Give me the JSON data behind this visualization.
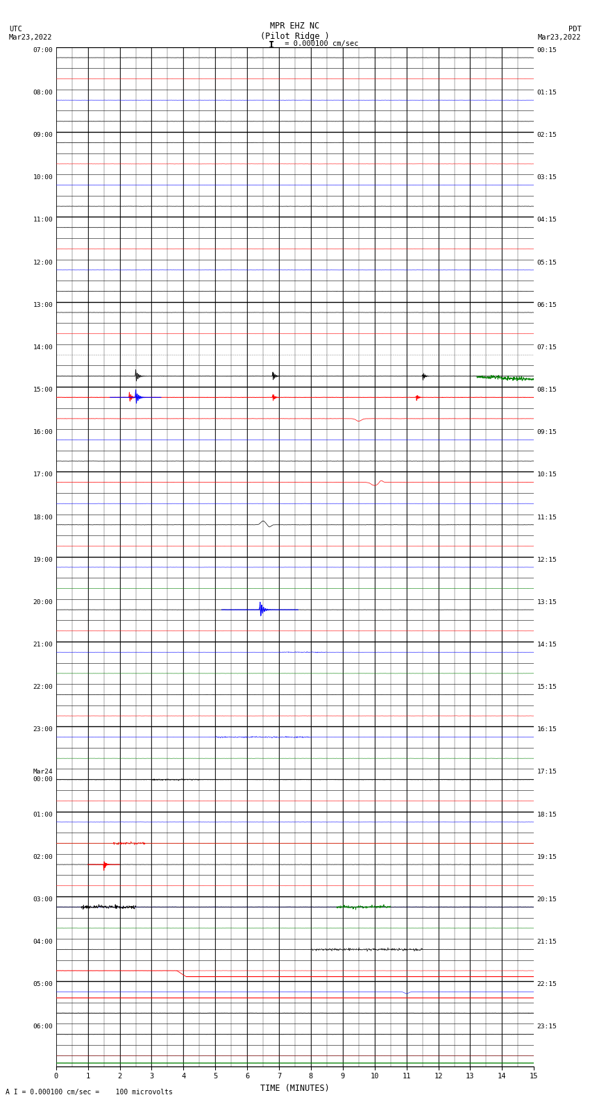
{
  "title_line1": "MPR EHZ NC",
  "title_line2": "(Pilot Ridge )",
  "scale_label": "I = 0.000100 cm/sec",
  "left_header": "UTC\nMar23,2022",
  "right_header": "PDT\nMar23,2022",
  "bottom_label": "A I = 0.000100 cm/sec =    100 microvolts",
  "xlabel": "TIME (MINUTES)",
  "num_rows": 48,
  "x_ticks": [
    0,
    1,
    2,
    3,
    4,
    5,
    6,
    7,
    8,
    9,
    10,
    11,
    12,
    13,
    14,
    15
  ],
  "background": "#ffffff",
  "grid_color": "#000000"
}
